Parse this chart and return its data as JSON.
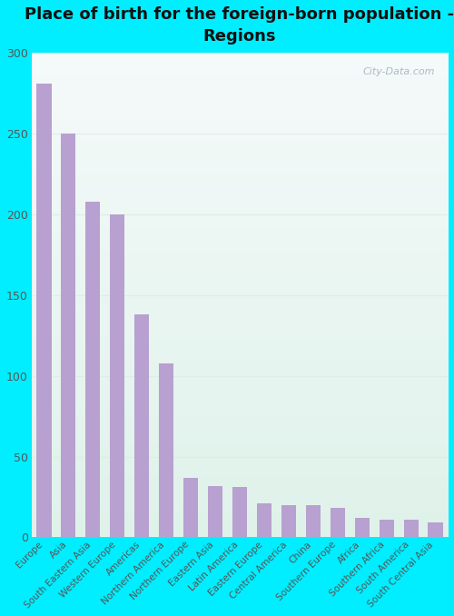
{
  "title": "Place of birth for the foreign-born population -\nRegions",
  "categories": [
    "Europe",
    "Asia",
    "South Eastern Asia",
    "Western Europe",
    "Americas",
    "Northern America",
    "Northern Europe",
    "Eastern Asia",
    "Latin America",
    "Eastern Europe",
    "Central America",
    "China",
    "Southern Europe",
    "Africa",
    "Southern Africa",
    "South America",
    "South Central Asia"
  ],
  "values": [
    281,
    250,
    208,
    200,
    138,
    108,
    37,
    32,
    31,
    21,
    20,
    20,
    18,
    12,
    11,
    11,
    9
  ],
  "bar_color": "#b8a0d0",
  "ylim": [
    0,
    300
  ],
  "yticks": [
    0,
    50,
    100,
    150,
    200,
    250,
    300
  ],
  "bg_color_outer": "#00eeff",
  "bg_color_inner_top": "#f5fafa",
  "bg_color_inner_bottom": "#dff2ea",
  "grid_color": "#e0ece8",
  "title_fontsize": 13,
  "tick_fontsize": 7.5,
  "watermark_text": "City-Data.com"
}
